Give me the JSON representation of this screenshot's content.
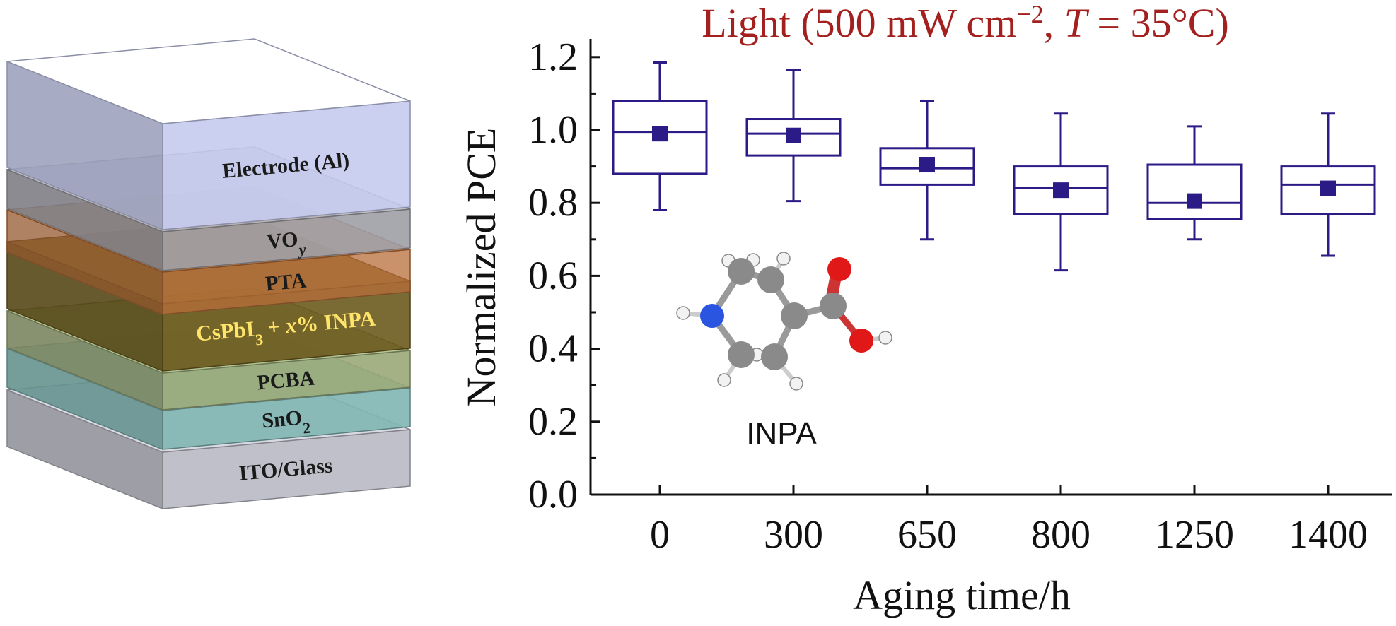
{
  "device_stack": {
    "layers": [
      {
        "label": "ITO/Glass",
        "color": "#b9b9c4"
      },
      {
        "label": "SnO",
        "sub": "2",
        "color": "#7fb6b3"
      },
      {
        "label": "PCBA",
        "color": "#9aa878"
      },
      {
        "label_main": "CsPbI",
        "sub": "3",
        "label_mid": " + ",
        "label_ital": "x",
        "label_tail": "% INPA",
        "color": "#6b5a1e"
      },
      {
        "label": "PTA",
        "color": "#b86e3a"
      },
      {
        "label": "VO",
        "sub": "y",
        "color": "#9e9ea6"
      },
      {
        "label": "Electrode (Al)",
        "color": "#c6cbee"
      }
    ]
  },
  "molecule": {
    "label": "INPA",
    "atom_colors": {
      "carbon": "#8a8a8a",
      "nitrogen": "#2a55e0",
      "oxygen": "#e01818",
      "hydrogen": "#f2f2f2"
    }
  },
  "chart_data": {
    "type": "box",
    "title_prefix": "Light (500 mW cm",
    "title_sup": "−2",
    "title_mid": ", ",
    "title_ital": "T",
    "title_suffix": " = 35°C)",
    "xlabel": "Aging time/h",
    "ylabel": "Normalized PCE",
    "ylim": [
      0,
      1.25
    ],
    "yticks": [
      "0.0",
      "0.2",
      "0.4",
      "0.6",
      "0.8",
      "1.0",
      "1.2"
    ],
    "categories": [
      "0",
      "300",
      "650",
      "800",
      "1250",
      "1400"
    ],
    "boxes": [
      {
        "whisker_low": 0.78,
        "q1": 0.88,
        "median": 0.995,
        "q3": 1.08,
        "whisker_high": 1.185,
        "mean": 0.99
      },
      {
        "whisker_low": 0.805,
        "q1": 0.93,
        "median": 0.99,
        "q3": 1.03,
        "whisker_high": 1.165,
        "mean": 0.985
      },
      {
        "whisker_low": 0.7,
        "q1": 0.85,
        "median": 0.895,
        "q3": 0.95,
        "whisker_high": 1.08,
        "mean": 0.905
      },
      {
        "whisker_low": 0.615,
        "q1": 0.77,
        "median": 0.84,
        "q3": 0.9,
        "whisker_high": 1.045,
        "mean": 0.835
      },
      {
        "whisker_low": 0.7,
        "q1": 0.755,
        "median": 0.8,
        "q3": 0.905,
        "whisker_high": 1.01,
        "mean": 0.805
      },
      {
        "whisker_low": 0.655,
        "q1": 0.77,
        "median": 0.85,
        "q3": 0.9,
        "whisker_high": 1.045,
        "mean": 0.84
      }
    ],
    "box_color": "#2b1b86"
  }
}
